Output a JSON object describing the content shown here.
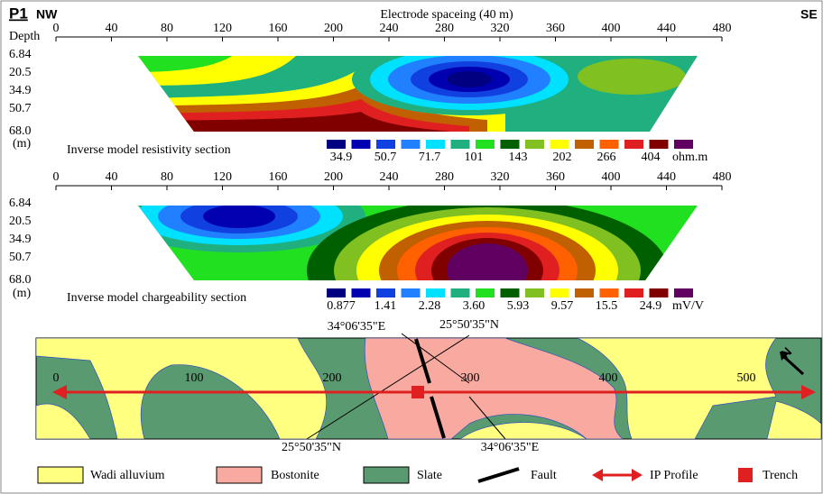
{
  "header": {
    "profile": "P1",
    "left_direction": "NW",
    "right_direction": "SE",
    "axis_title": "Electrode spaceing (40 m)",
    "depth_label": "Depth"
  },
  "distance_ticks": [
    "0",
    "40",
    "80",
    "120",
    "160",
    "200",
    "240",
    "280",
    "320",
    "360",
    "400",
    "440",
    "480"
  ],
  "depth_ticks": [
    "6.84",
    "20.5",
    "34.9",
    "50.7",
    "68.0"
  ],
  "depth_unit": "(m)",
  "resistivity": {
    "title": "Inverse model resistivity section",
    "scale_labels": [
      "34.9",
      "50.7",
      "71.7",
      "101",
      "143",
      "202",
      "266",
      "404"
    ],
    "unit": "ohm.m"
  },
  "chargeability": {
    "title": "Inverse model chargeability section",
    "scale_labels": [
      "0.877",
      "1.41",
      "2.28",
      "3.60",
      "5.93",
      "9.57",
      "15.5",
      "24.9"
    ],
    "unit": "mV/V"
  },
  "map": {
    "ticks": [
      "0",
      "100",
      "200",
      "300",
      "400",
      "500"
    ],
    "north": "N",
    "coordinates": [
      "34°06'35\"E",
      "25°50'35\"N",
      "25°50'35\"N",
      "34°06'35\"E"
    ]
  },
  "legend": [
    "Wadi alluvium",
    "Bostonite",
    "Slate",
    "Fault",
    "IP Profile",
    "Trench"
  ]
}
